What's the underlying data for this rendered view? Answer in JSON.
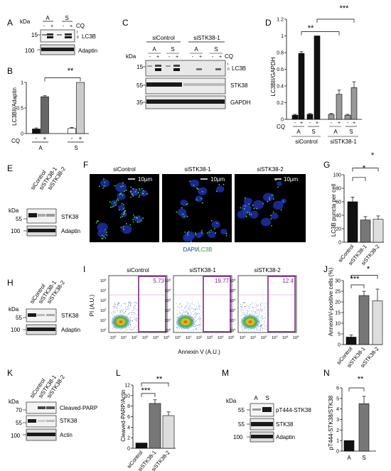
{
  "panels": {
    "a": {
      "letter": "A",
      "kda": "kDa",
      "lanes_top": [
        "A",
        "S"
      ],
      "signs": [
        "-",
        "+",
        "-",
        "+"
      ],
      "cq": "CQ",
      "markers": [
        "15",
        "100"
      ],
      "roman": [
        "I",
        "II"
      ],
      "labels": [
        "LC3B",
        "Adaptin"
      ]
    },
    "b": {
      "letter": "B",
      "sig": "**",
      "cq": "CQ",
      "signs": [
        "-",
        "+",
        "-",
        "+"
      ],
      "groups": [
        "A",
        "S"
      ]
    },
    "c": {
      "letter": "C",
      "kda": "kDa",
      "groups": [
        "siControl",
        "siSTK38-1"
      ],
      "lanes": [
        "A",
        "S",
        "A",
        "S"
      ],
      "signs": [
        "-",
        "+",
        "-",
        "+",
        "-",
        "+",
        "-",
        "+"
      ],
      "cq": "CQ",
      "markers": [
        "15",
        "55",
        "35"
      ],
      "roman": [
        "I",
        "II"
      ],
      "labels": [
        "LC3B",
        "STK38",
        "GAPDH"
      ]
    },
    "d": {
      "letter": "D",
      "sig": [
        "**",
        "***"
      ],
      "cq": "CQ",
      "signs": [
        "-",
        "+",
        "-",
        "+",
        "-",
        "+",
        "-",
        "+"
      ],
      "lanes": [
        "A",
        "S",
        "A",
        "S"
      ],
      "groups": [
        "siControl",
        "siSTK38-1"
      ]
    },
    "e": {
      "letter": "E",
      "kda": "kDa",
      "lanes": [
        "siControl",
        "siSTK38-1",
        "siSTK38-2"
      ],
      "markers": [
        "55",
        "100"
      ],
      "labels": [
        "STK38",
        "Adaptin"
      ]
    },
    "f": {
      "letter": "F",
      "titles": [
        "siControl",
        "siSTK38-1",
        "siSTK38-2"
      ],
      "scale": "10µm",
      "caption_dapi": "DAPI",
      "caption_sep": "/",
      "caption_lc3b": "LC3B"
    },
    "g": {
      "letter": "G",
      "sig": [
        "*",
        "*"
      ],
      "categories": [
        "siControl",
        "siSTK38-1",
        "siSTK38-2"
      ]
    },
    "h": {
      "letter": "H",
      "kda": "kDa",
      "lanes": [
        "siControl",
        "siSTK38-1",
        "siSTK38-2"
      ],
      "markers": [
        "55",
        "100"
      ],
      "labels": [
        "STK38",
        "Adaptin"
      ]
    },
    "i": {
      "letter": "I",
      "titles": [
        "siControl",
        "siSTK38-1",
        "siSTK38-2"
      ],
      "percents": [
        "5.73",
        "19.77",
        "12.4"
      ],
      "ylabel": "PI (A.U.)",
      "xlabel": "Annexin V (A.U.)",
      "ticks": [
        "10",
        "10",
        "10",
        "10",
        "10",
        "10"
      ],
      "exponents": [
        "0",
        "1",
        "2",
        "3",
        "4",
        "5"
      ]
    },
    "j": {
      "letter": "J",
      "sig": [
        "***",
        "*"
      ],
      "categories": [
        "siControl",
        "siSTK38-1",
        "siSTK38-2"
      ]
    },
    "k": {
      "letter": "K",
      "kda": "kDa",
      "lanes": [
        "siControl",
        "siSTK38-1",
        "siSTK38-2"
      ],
      "markers": [
        "70",
        "55",
        "100"
      ],
      "labels": [
        "Cleaved-PARP",
        "STK38",
        "Actin"
      ]
    },
    "l": {
      "letter": "L",
      "sig": [
        "***",
        "**"
      ],
      "categories": [
        "siControl",
        "siSTK38-1",
        "siSTK38-2"
      ]
    },
    "m": {
      "letter": "M",
      "kda": "kDa",
      "lanes": [
        "A",
        "S"
      ],
      "markers": [
        "55",
        "55",
        "100"
      ],
      "labels": [
        "pT444-STK38",
        "STK38",
        "Adaptin"
      ]
    },
    "n": {
      "letter": "N",
      "sig": "**",
      "categories": [
        "A",
        "S"
      ]
    }
  },
  "chart_data": [
    {
      "panel": "B",
      "type": "bar",
      "categories": [
        "A -CQ",
        "A +CQ",
        "S -CQ",
        "S +CQ"
      ],
      "values": [
        0.09,
        0.72,
        0.1,
        1.0
      ],
      "errors": [
        0.02,
        0.02,
        0.02,
        0
      ],
      "colors": [
        "#111111",
        "#666666",
        "#ffffff",
        "#cccccc"
      ],
      "ylabel": "LC3BII/Adaptin",
      "ylim": [
        0,
        1
      ],
      "yticks": [
        "0",
        "0.5",
        "1"
      ]
    },
    {
      "panel": "D",
      "type": "bar",
      "categories": [
        "siControl A -",
        "siControl A +",
        "siControl S -",
        "siControl S +",
        "siSTK38-1 A -",
        "siSTK38-1 A +",
        "siSTK38-1 S -",
        "siSTK38-1 S +"
      ],
      "values": [
        0.05,
        0.79,
        0.06,
        1.0,
        0.06,
        0.3,
        0.05,
        0.38
      ],
      "errors": [
        0.01,
        0.02,
        0.01,
        0,
        0.01,
        0.05,
        0.01,
        0.07
      ],
      "colors": [
        "#111111",
        "#111111",
        "#111111",
        "#111111",
        "#999999",
        "#999999",
        "#999999",
        "#999999"
      ],
      "ylabel": "LC3BII/GAPDH",
      "ylim": [
        0,
        1.2
      ],
      "yticks": [
        "0",
        "0.2",
        "0.4",
        "0.6",
        "0.8",
        "1",
        "1.2"
      ]
    },
    {
      "panel": "G",
      "type": "bar",
      "categories": [
        "siControl",
        "siSTK38-1",
        "siSTK38-2"
      ],
      "values": [
        60,
        33,
        34
      ],
      "errors": [
        7,
        5,
        5
      ],
      "colors": [
        "#111111",
        "#777777",
        "#dddddd"
      ],
      "ylabel": "LC3B puncta per cell",
      "ylim": [
        0,
        100
      ],
      "yticks": [
        "0",
        "20",
        "40",
        "60",
        "80",
        "100"
      ]
    },
    {
      "panel": "J",
      "type": "bar",
      "categories": [
        "siControl",
        "siSTK38-1",
        "siSTK38-2"
      ],
      "values": [
        3.5,
        23,
        20.5
      ],
      "errors": [
        1,
        2,
        5.5
      ],
      "colors": [
        "#111111",
        "#777777",
        "#dddddd"
      ],
      "ylabel": "AnnexinV-positive cells (%)",
      "ylim": [
        0,
        30
      ],
      "yticks": [
        "0",
        "5",
        "10",
        "15",
        "20",
        "25",
        "30"
      ]
    },
    {
      "panel": "L",
      "type": "bar",
      "categories": [
        "siControl",
        "siSTK38-1",
        "siSTK38-2"
      ],
      "values": [
        1,
        8.5,
        6.2
      ],
      "errors": [
        0,
        0.7,
        0.7
      ],
      "colors": [
        "#111111",
        "#777777",
        "#dddddd"
      ],
      "ylabel": "Cleaved-PARP/Actin",
      "ylim": [
        0,
        12
      ],
      "yticks": [
        "0",
        "2",
        "4",
        "6",
        "8",
        "10",
        "12"
      ]
    },
    {
      "panel": "N",
      "type": "bar",
      "categories": [
        "A",
        "S"
      ],
      "values": [
        1,
        4.5
      ],
      "errors": [
        0,
        0.7
      ],
      "colors": [
        "#111111",
        "#777777"
      ],
      "ylabel": "pT444-STK38/STK38",
      "ylim": [
        0,
        6
      ],
      "yticks": [
        "0",
        "1",
        "2",
        "3",
        "4",
        "5",
        "6"
      ]
    }
  ]
}
